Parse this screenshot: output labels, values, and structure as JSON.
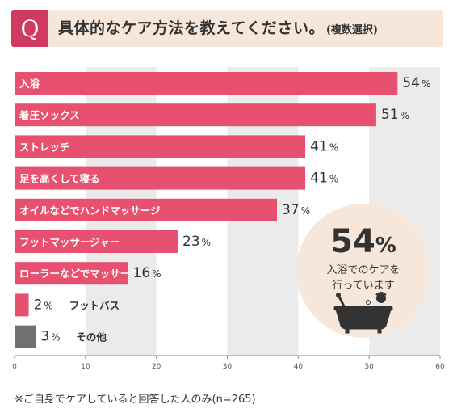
{
  "question": {
    "badge": "Q",
    "title": "具体的なケア方法を教えてください。",
    "subtitle": "(複数選択)"
  },
  "chart_data": {
    "type": "bar",
    "orientation": "horizontal",
    "categories": [
      "入浴",
      "着圧ソックス",
      "ストレッチ",
      "足を高くして寝る",
      "オイルなどでハンドマッサージ",
      "フットマッサージャー",
      "ローラーなどでマッサージ",
      "フットバス",
      "その他"
    ],
    "values": [
      54,
      51,
      41,
      41,
      37,
      23,
      16,
      2,
      3
    ],
    "value_unit": "%",
    "xlim": [
      0,
      60
    ],
    "xticks": [
      0,
      10,
      20,
      30,
      40,
      50,
      60
    ],
    "grid": "alternating column bands",
    "colors": {
      "bar": "#e8506f",
      "bar_other": "#707070",
      "band": "#ebebeb",
      "label_inside": "#ffffff",
      "label_outside": "#333333"
    }
  },
  "callout": {
    "value": "54",
    "unit": "%",
    "line1": "入浴でのケアを",
    "line2": "行っています",
    "icon": "bathtub-icon",
    "color": "#f7e6da"
  },
  "footnote": "※ご自身でケアしていると回答した人のみ(n=265)"
}
